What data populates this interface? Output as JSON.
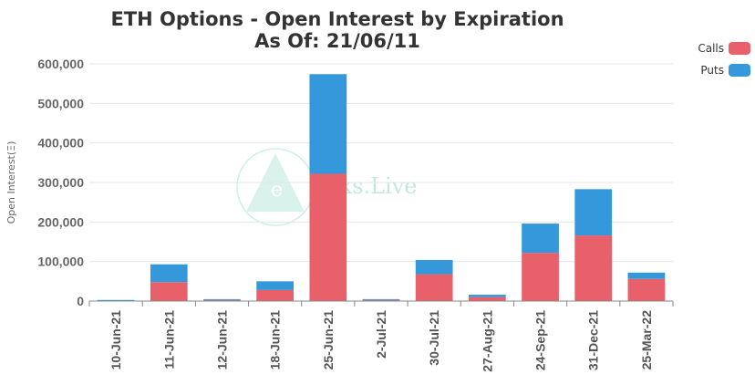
{
  "chart_data": {
    "type": "bar",
    "stacked": true,
    "title": "ETH Options - Open Interest by Expiration",
    "subtitle": "As Of: 21/06/11",
    "ylabel": "Open Interest(Ξ)",
    "xlabel": "",
    "ylim": [
      0,
      600000
    ],
    "yticks": [
      0,
      100000,
      200000,
      300000,
      400000,
      500000,
      600000
    ],
    "ytick_labels": [
      "0",
      "100,000",
      "200,000",
      "300,000",
      "400,000",
      "500,000",
      "600,000"
    ],
    "grid": true,
    "legend_position": "top-right",
    "categories": [
      "10-Jun-21",
      "11-Jun-21",
      "12-Jun-21",
      "18-Jun-21",
      "25-Jun-21",
      "2-Jul-21",
      "30-Jul-21",
      "27-Aug-21",
      "24-Sep-21",
      "31-Dec-21",
      "25-Mar-22"
    ],
    "series": [
      {
        "name": "Calls",
        "color": "#e8606a",
        "values": [
          500,
          48000,
          2500,
          28000,
          322000,
          2500,
          68000,
          10000,
          122000,
          166000,
          56000
        ]
      },
      {
        "name": "Puts",
        "color": "#3498db",
        "values": [
          500,
          45000,
          1500,
          22000,
          252000,
          1500,
          36000,
          6000,
          74000,
          117000,
          16000
        ]
      }
    ]
  },
  "watermark": {
    "text": "ecks.Live",
    "logo_letter": "e"
  }
}
